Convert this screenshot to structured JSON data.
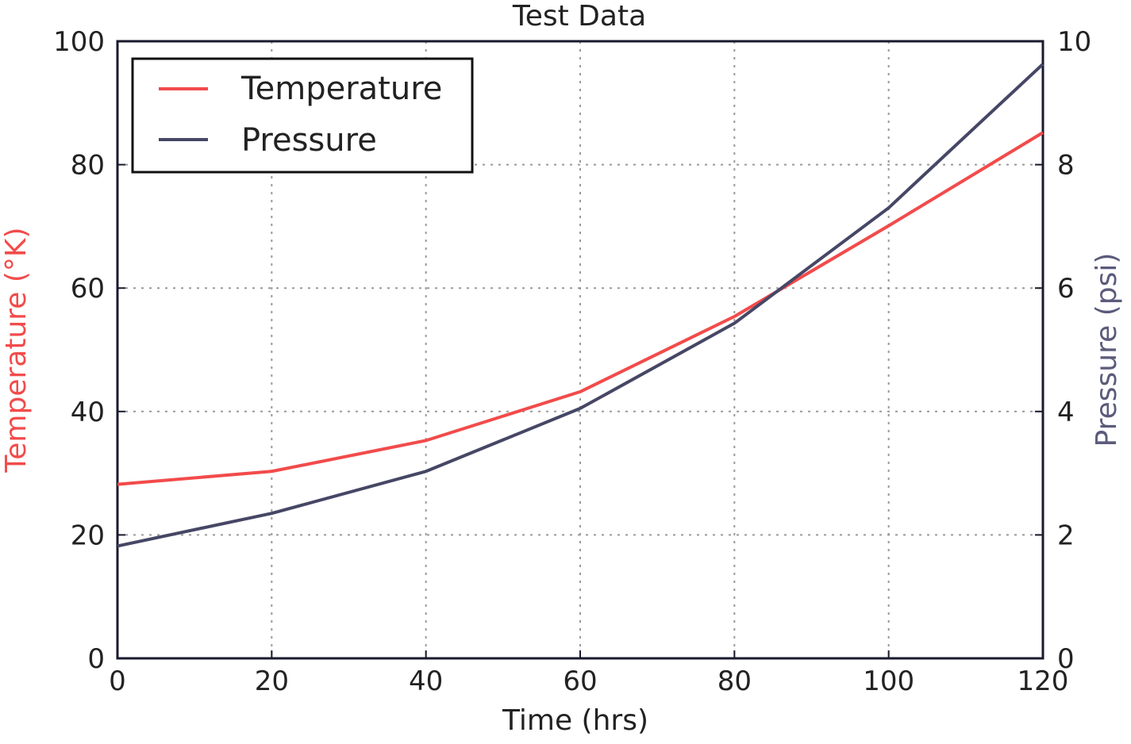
{
  "chart_data": {
    "type": "line",
    "title": "Test Data",
    "xlabel": "Time (hrs)",
    "ylabel_left": "Temperature (°K)",
    "ylabel_right": "Pressure (psi)",
    "x": [
      0,
      20,
      40,
      60,
      80,
      100,
      120
    ],
    "xlim": [
      0,
      120
    ],
    "x_ticks": [
      "0",
      "20",
      "40",
      "60",
      "80",
      "100",
      "120"
    ],
    "ylim_left": [
      0,
      100
    ],
    "y_ticks_left": [
      "0",
      "20",
      "40",
      "60",
      "80",
      "100"
    ],
    "ylim_right": [
      0,
      10
    ],
    "y_ticks_right": [
      "0",
      "2",
      "4",
      "6",
      "8",
      "10"
    ],
    "grid": true,
    "legend_position": "top-left",
    "series": [
      {
        "name": "Temperature",
        "axis": "left",
        "color": "#f24b4b",
        "values": [
          28.2,
          30.3,
          35.3,
          43.2,
          55.4,
          70.1,
          85.2
        ]
      },
      {
        "name": "Pressure",
        "axis": "right",
        "color": "#464765",
        "values": [
          1.82,
          2.35,
          3.03,
          4.05,
          5.43,
          7.3,
          9.63
        ]
      }
    ],
    "colors": {
      "left_axis_label": "#f24b4b",
      "right_axis_label": "#5b5b7b"
    }
  }
}
